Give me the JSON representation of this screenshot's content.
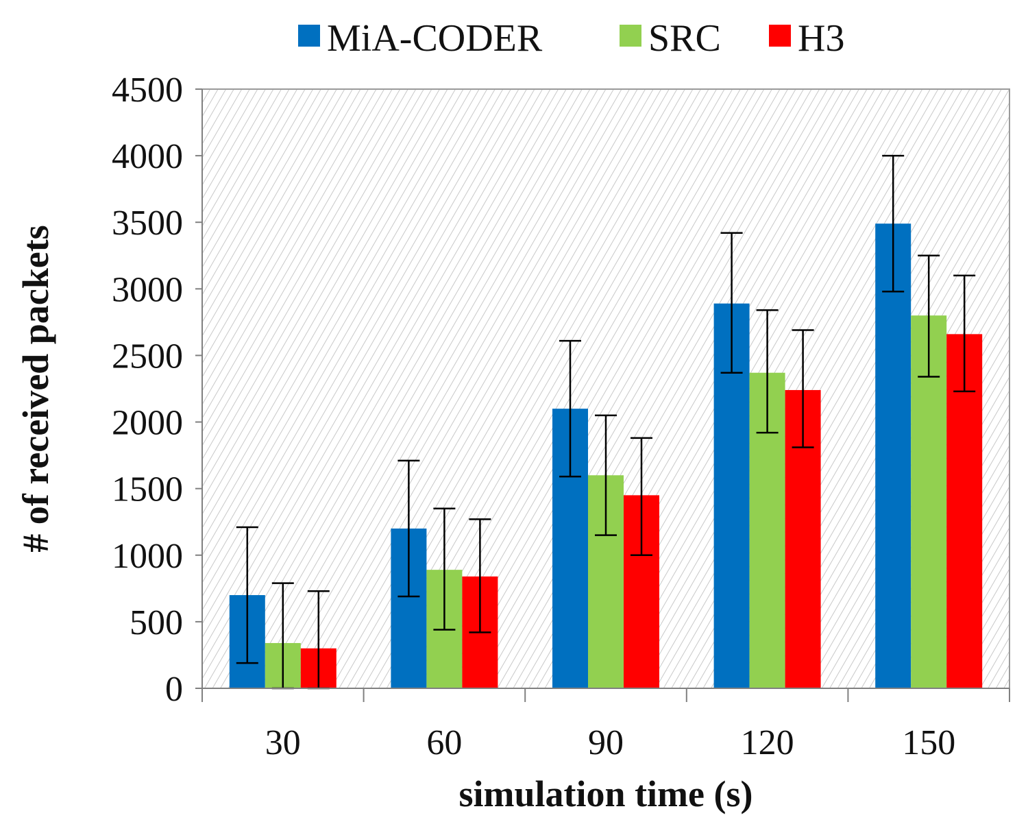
{
  "chart_data": {
    "type": "bar",
    "title": "",
    "xlabel": "simulation time (s)",
    "ylabel": "# of received packets",
    "categories": [
      "30",
      "60",
      "90",
      "120",
      "150"
    ],
    "ylim": [
      0,
      4500
    ],
    "yticks": [
      0,
      500,
      1000,
      1500,
      2000,
      2500,
      3000,
      3500,
      4000,
      4500
    ],
    "grid": false,
    "legend_position": "top",
    "series": [
      {
        "name": "MiA-CODER",
        "color": "#0070C0",
        "values": [
          700,
          1200,
          2100,
          2890,
          3490
        ],
        "error_low": [
          190,
          690,
          1590,
          2370,
          2980
        ],
        "error_high": [
          1210,
          1710,
          2610,
          3420,
          4000
        ]
      },
      {
        "name": "SRC",
        "color": "#92D050",
        "values": [
          340,
          890,
          1600,
          2370,
          2800
        ],
        "error_low": [
          0,
          440,
          1150,
          1920,
          2340
        ],
        "error_high": [
          790,
          1350,
          2050,
          2840,
          3250
        ]
      },
      {
        "name": "H3",
        "color": "#FF0000",
        "values": [
          300,
          840,
          1450,
          2240,
          2660
        ],
        "error_low": [
          0,
          420,
          1000,
          1810,
          2230
        ],
        "error_high": [
          730,
          1270,
          1880,
          2690,
          3100
        ]
      }
    ]
  }
}
